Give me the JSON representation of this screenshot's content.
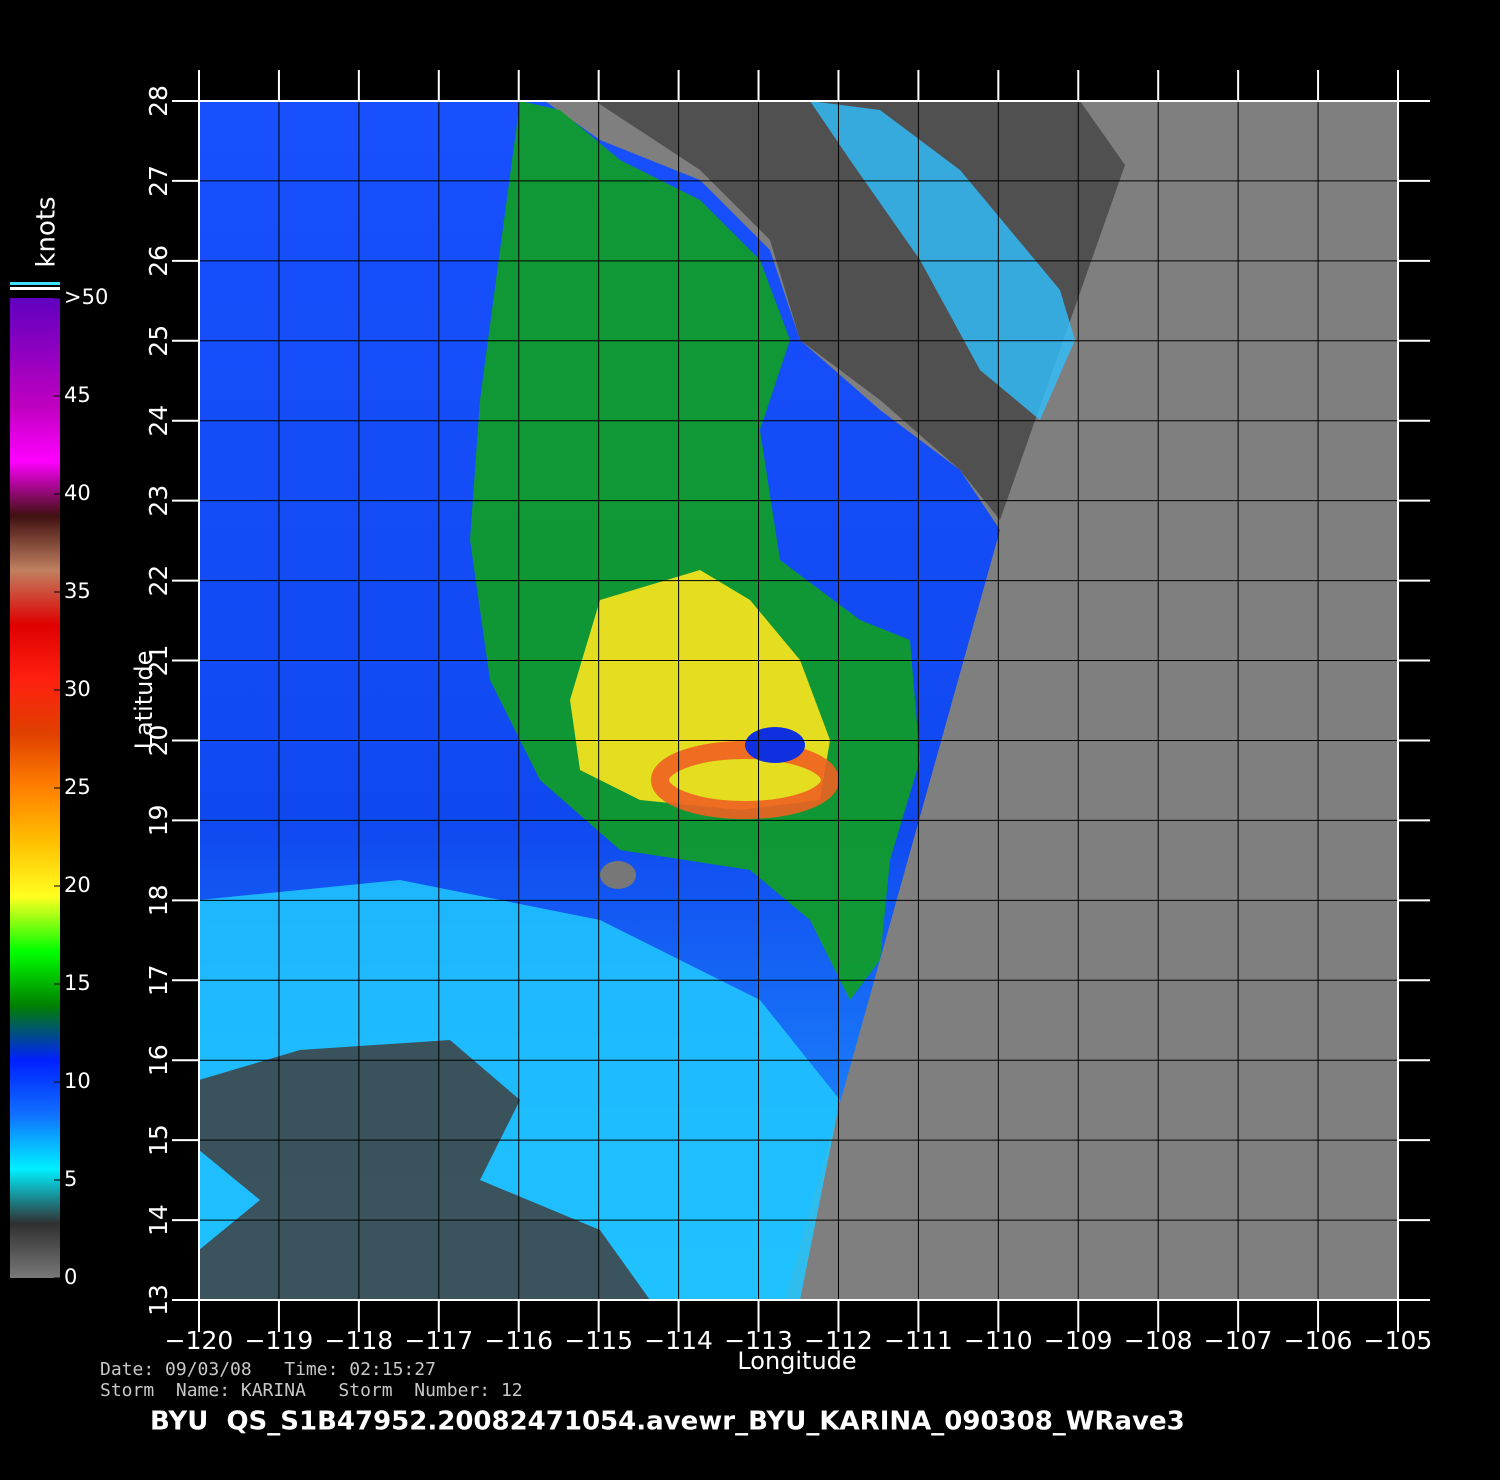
{
  "chart_data": {
    "type": "map",
    "xlabel": "Longitude",
    "ylabel": "Latitude",
    "xlim": [
      -120,
      -105
    ],
    "ylim": [
      13,
      28
    ],
    "xticks": [
      {
        "value": -120,
        "label": "−120"
      },
      {
        "value": -119,
        "label": "−119"
      },
      {
        "value": -118,
        "label": "−118"
      },
      {
        "value": -117,
        "label": "−117"
      },
      {
        "value": -116,
        "label": "−116"
      },
      {
        "value": -115,
        "label": "−115"
      },
      {
        "value": -114,
        "label": "−114"
      },
      {
        "value": -113,
        "label": "−113"
      },
      {
        "value": -112,
        "label": "−112"
      },
      {
        "value": -111,
        "label": "−111"
      },
      {
        "value": -110,
        "label": "−110"
      },
      {
        "value": -109,
        "label": "−109"
      },
      {
        "value": -108,
        "label": "−108"
      },
      {
        "value": -107,
        "label": "−107"
      },
      {
        "value": -106,
        "label": "−106"
      },
      {
        "value": -105,
        "label": "−105"
      }
    ],
    "yticks": [
      13,
      14,
      15,
      16,
      17,
      18,
      19,
      20,
      21,
      22,
      23,
      24,
      25,
      26,
      27,
      28
    ],
    "grid": true,
    "colorbar": {
      "label": "knots",
      "lim": [
        0,
        50
      ],
      "ticks": [
        0,
        5,
        10,
        15,
        20,
        25,
        30,
        35,
        40,
        45,
        {
          "value": 50,
          "label": ">50"
        }
      ],
      "colors": [
        "#787878",
        "#303030",
        "#00f0ff",
        "#1070ff",
        "#0020ff",
        "#008000",
        "#00ff00",
        "#ffff20",
        "#ffc000",
        "#ff8000",
        "#e04000",
        "#ff2010",
        "#e00000",
        "#c08060",
        "#401010",
        "#ff00ff",
        "#c000c0",
        "#9000c0",
        "#6000c0"
      ]
    },
    "info_lines": [
      "Date: 09/03/08   Time: 02:15:27",
      "Storm  Name: KARINA   Storm  Number: 12"
    ],
    "title": "BYU  QS_S1B47952.20082471054.avewr_BYU_KARINA_090308_WRave3"
  }
}
